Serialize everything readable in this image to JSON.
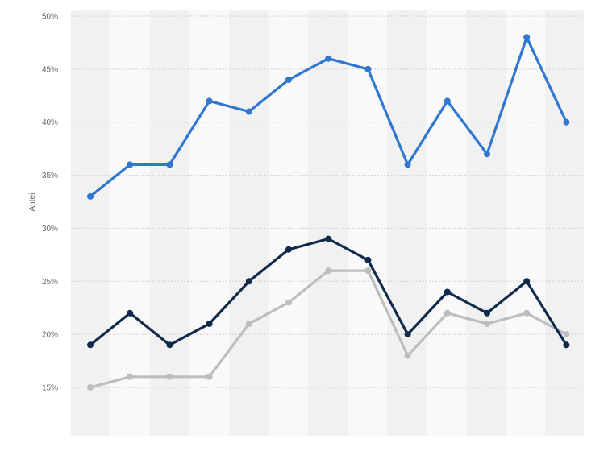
{
  "chart_data": {
    "type": "line",
    "title": "",
    "xlabel": "",
    "ylabel": "Anteil",
    "ylim": [
      15,
      50
    ],
    "y_ticks": [
      "15%",
      "20%",
      "25%",
      "30%",
      "35%",
      "40%",
      "45%",
      "50%"
    ],
    "y_tick_values": [
      15,
      20,
      25,
      30,
      35,
      40,
      45,
      50
    ],
    "grid": true,
    "x": [
      1,
      2,
      3,
      4,
      5,
      6,
      7,
      8,
      9,
      10,
      11,
      12,
      13
    ],
    "series": [
      {
        "values": [
          33,
          36,
          36,
          42,
          41,
          44,
          46,
          45,
          36,
          42,
          37,
          48,
          40
        ],
        "color": "#2f77d1"
      },
      {
        "values": [
          19,
          22,
          19,
          21,
          25,
          28,
          29,
          27,
          20,
          24,
          22,
          25,
          19
        ],
        "color": "#0f2a4a"
      },
      {
        "values": [
          15,
          16,
          16,
          16,
          21,
          23,
          26,
          26,
          18,
          22,
          21,
          22,
          20
        ],
        "color": "#bdbdbd"
      }
    ]
  },
  "colors": {
    "background": "#ffffff",
    "band_dark": "#f1f1f1",
    "band_light": "#f9f9f9",
    "grid": "#cfcfcf",
    "tick_text": "#666666"
  }
}
